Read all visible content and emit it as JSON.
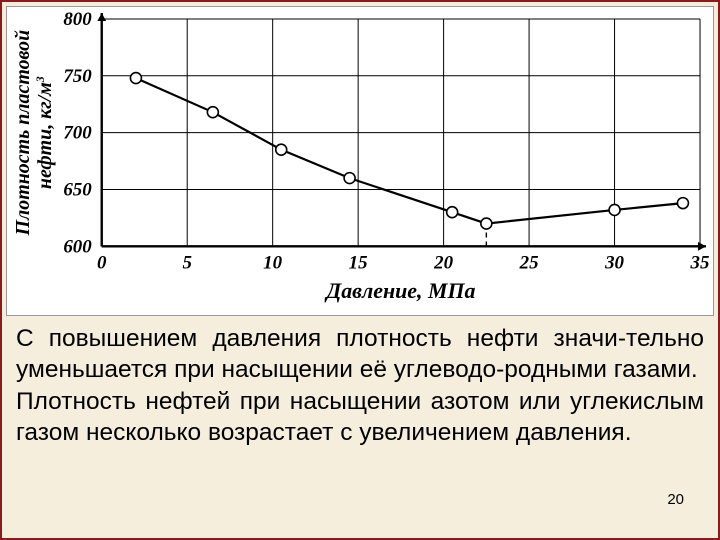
{
  "chart": {
    "type": "line",
    "xlabel": "Давление, МПа",
    "ylabel": "Плотность пластовой нефти, кг/м³",
    "ylabel_line1": "Плотность пластовой",
    "ylabel_line2": "нефти, кг/м",
    "ylabel_sup": "3",
    "xlabel_fontsize": 22,
    "ylabel_fontsize": 20,
    "tick_fontsize": 19,
    "xlim": [
      0,
      35
    ],
    "ylim": [
      600,
      800
    ],
    "xticks": [
      0,
      5,
      10,
      15,
      20,
      25,
      30,
      35
    ],
    "yticks": [
      600,
      650,
      700,
      750,
      800
    ],
    "grid_color": "#000000",
    "background_color": "#ffffff",
    "line_color": "#000000",
    "line_width": 2.2,
    "marker": "circle",
    "marker_size": 5.5,
    "marker_fill": "#ffffff",
    "marker_stroke": "#000000",
    "marker_stroke_width": 1.6,
    "data": {
      "x": [
        2,
        6.5,
        10.5,
        14.5,
        20.5,
        22.5,
        30,
        34
      ],
      "y": [
        748,
        718,
        685,
        660,
        630,
        620,
        632,
        638
      ]
    },
    "dashed_drop": {
      "x": 22.5,
      "from_y": 620,
      "to_y": 600
    },
    "axis_arrow_size": 8
  },
  "caption": {
    "p1": "С повышением давления плотность нефти значи-тельно уменьшается при насыщении её углеводо-родными газами.",
    "p2": "Плотность нефтей при насыщении азотом или углекислым газом несколько возрастает с увеличением давления."
  },
  "page_number": "20",
  "colors": {
    "page_bg": "#f5eedd",
    "page_border": "#8b1a1a",
    "text": "#000000"
  }
}
